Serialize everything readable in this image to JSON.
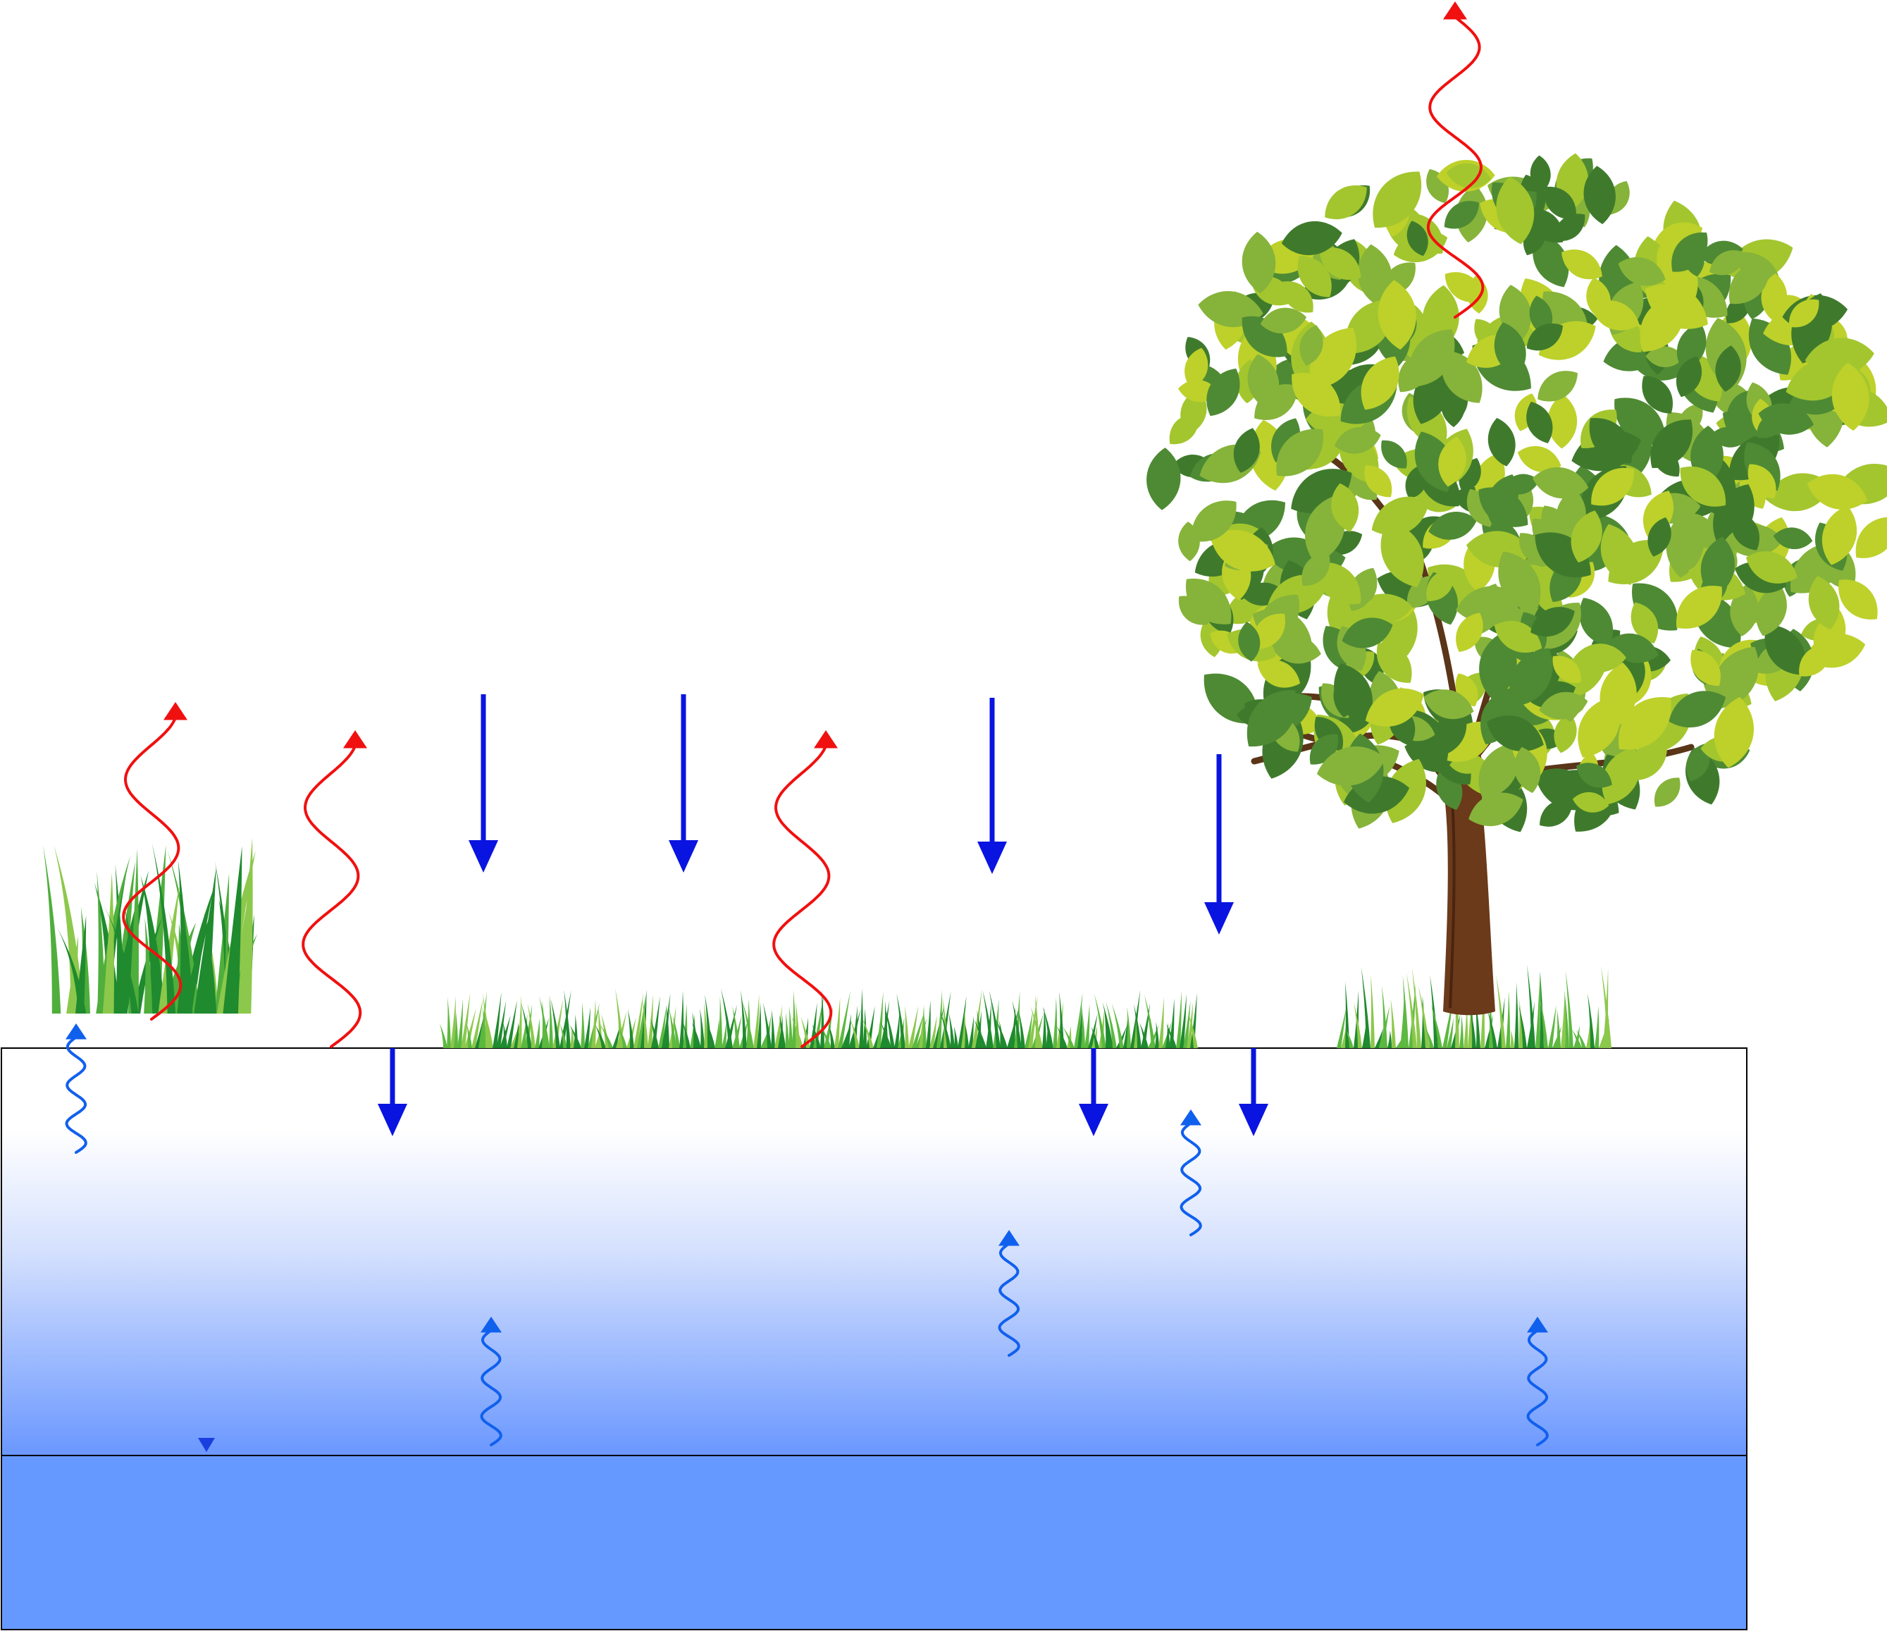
{
  "diagram": {
    "colors": {
      "background": "#ffffff",
      "soil_top": "#ffffff",
      "soil_bottom": "#6a97ff",
      "groundwater": "#6699ff",
      "outline": "#000000",
      "rain_arrow": "#0a14e0",
      "capillary_arrow": "#1060ee",
      "evaporation_arrow": "#f01010",
      "grass_dark": "#1f8a2e",
      "grass_light": "#8cc84b",
      "leaf_dark": "#4e8a34",
      "leaf_mid": "#86b33a",
      "leaf_light": "#bdd12a",
      "trunk": "#6b3a1a"
    },
    "elements": {
      "clumped_plants": "grass-clump-icon",
      "short_grass": "grass-strip-icon",
      "tree": "tree-icon",
      "water_table_marker": "water-table-triangle-icon"
    }
  }
}
